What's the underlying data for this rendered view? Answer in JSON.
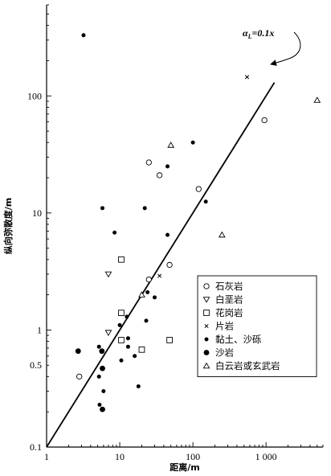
{
  "chart_data": {
    "type": "scatter",
    "xlabel": "距离/m",
    "ylabel": "纵向弥散度/m",
    "xscale": "log",
    "yscale": "log",
    "xlim": [
      1,
      6000
    ],
    "ylim": [
      0.1,
      600
    ],
    "x_ticks": [
      {
        "value": 1,
        "label": "1"
      },
      {
        "value": 10,
        "label": "10"
      },
      {
        "value": 100,
        "label": "100"
      },
      {
        "value": 1000,
        "label": "1 000"
      }
    ],
    "y_ticks": [
      {
        "value": 0.1,
        "label": "0.1"
      },
      {
        "value": 0.5,
        "label": "0.5"
      },
      {
        "value": 1,
        "label": "1"
      },
      {
        "value": 10,
        "label": "10"
      },
      {
        "value": 100,
        "label": "100"
      }
    ],
    "annotation": {
      "text": "αL=0.1x",
      "label_main": "α",
      "label_sub": "L",
      "label_rest": "=0.1x"
    },
    "fit_line": {
      "x": [
        1,
        1300
      ],
      "y": [
        0.1,
        130
      ]
    },
    "legend_position": "lower-right",
    "series": [
      {
        "name": "石灰岩",
        "marker": "open-circle",
        "points": [
          [
            2.8,
            0.4
          ],
          [
            25,
            2.7
          ],
          [
            25,
            27
          ],
          [
            35,
            21
          ],
          [
            48,
            3.6
          ],
          [
            120,
            16
          ],
          [
            950,
            62
          ]
        ]
      },
      {
        "name": "白垩岩",
        "marker": "open-triangle-down",
        "points": [
          [
            7,
            3
          ],
          [
            7,
            0.95
          ]
        ]
      },
      {
        "name": "花岗岩",
        "marker": "open-square",
        "points": [
          [
            10.5,
            4
          ],
          [
            10.5,
            1.4
          ],
          [
            10.5,
            0.82
          ],
          [
            20,
            0.68
          ],
          [
            48,
            0.82
          ]
        ]
      },
      {
        "name": "片岩",
        "marker": "cross",
        "points": [
          [
            35,
            2.9
          ],
          [
            550,
            145
          ]
        ]
      },
      {
        "name": "黏土、沙砾",
        "marker": "small-dot",
        "points": [
          [
            3.2,
            330
          ],
          [
            5.8,
            11
          ],
          [
            8.5,
            6.8
          ],
          [
            10,
            1.1
          ],
          [
            12.5,
            1.3
          ],
          [
            13,
            0.85
          ],
          [
            13,
            0.72
          ],
          [
            16,
            0.6
          ],
          [
            10.5,
            0.55
          ],
          [
            5.2,
            0.72
          ],
          [
            5.2,
            0.4
          ],
          [
            6,
            0.3
          ],
          [
            5.3,
            0.23
          ],
          [
            18,
            0.33
          ],
          [
            23,
            1.2
          ],
          [
            24,
            2.1
          ],
          [
            22,
            11
          ],
          [
            30,
            1.9
          ],
          [
            45,
            6.5
          ],
          [
            45,
            25
          ],
          [
            100,
            40
          ],
          [
            150,
            12.5
          ]
        ]
      },
      {
        "name": "沙岩",
        "marker": "large-dot",
        "points": [
          [
            2.7,
            0.66
          ],
          [
            5.7,
            0.66
          ],
          [
            5.8,
            0.47
          ],
          [
            5.8,
            0.21
          ]
        ]
      },
      {
        "name": "白云岩或玄武岩",
        "marker": "open-triangle",
        "points": [
          [
            20,
            2
          ],
          [
            50,
            38
          ],
          [
            250,
            6.5
          ],
          [
            5000,
            92
          ]
        ]
      }
    ]
  }
}
